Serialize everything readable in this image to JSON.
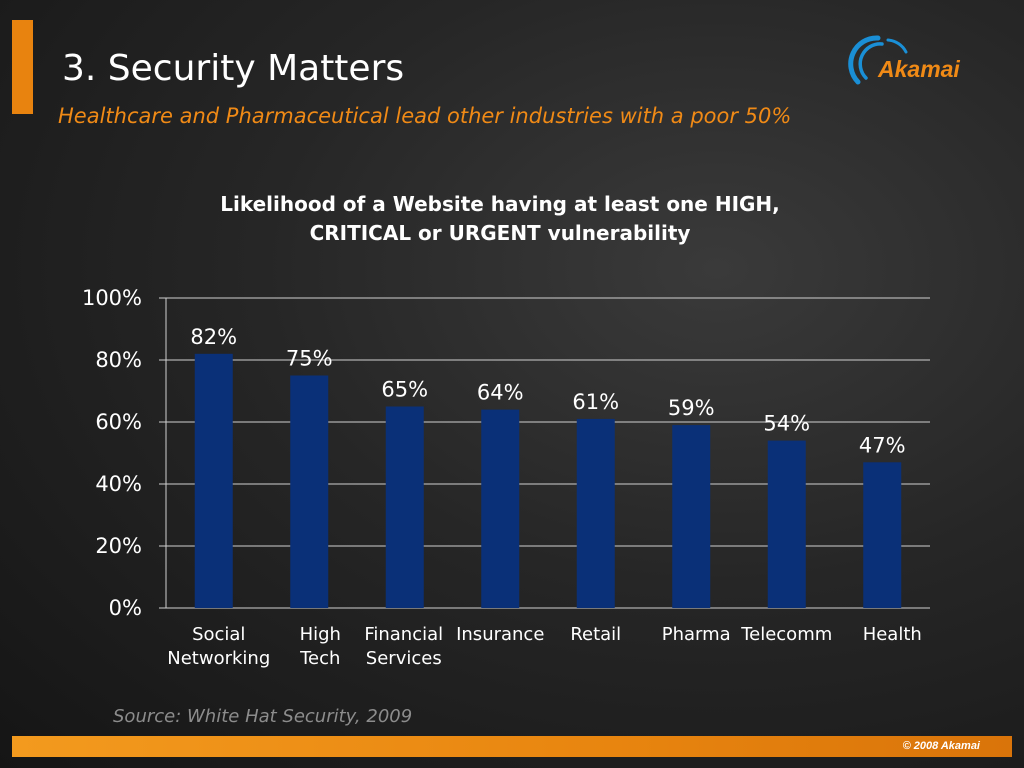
{
  "slide": {
    "title": "3. Security Matters",
    "subtitle": "Healthcare and Pharmaceutical lead other industries with a poor 50%",
    "source": "Source: White Hat Security, 2009",
    "copyright": "© 2008 Akamai",
    "logo_text": "Akamai"
  },
  "colors": {
    "accent": "#e8830f",
    "bar": "#0a3078",
    "subtitle": "#f08a16"
  },
  "chart_data": {
    "type": "bar",
    "title": "Likelihood of a Website having at least one HIGH, CRITICAL or URGENT vulnerability",
    "title_lines": [
      "Likelihood of a Website having at least one HIGH,",
      "CRITICAL or URGENT vulnerability"
    ],
    "categories": [
      [
        "Social",
        "Networking"
      ],
      [
        "High",
        "Tech"
      ],
      [
        "Financial",
        "Services"
      ],
      [
        "Insurance"
      ],
      [
        "Retail"
      ],
      [
        "Pharma"
      ],
      [
        "Telecomm"
      ],
      [
        "Health"
      ]
    ],
    "values": [
      82,
      75,
      65,
      64,
      61,
      59,
      54,
      47
    ],
    "data_labels": [
      "82%",
      "75%",
      "65%",
      "64%",
      "61%",
      "59%",
      "54%",
      "47%"
    ],
    "ylim": [
      0,
      100
    ],
    "yticks": [
      "0%",
      "20%",
      "40%",
      "60%",
      "80%",
      "100%"
    ],
    "grid": true,
    "legend": "none",
    "xlabel": "",
    "ylabel": ""
  }
}
